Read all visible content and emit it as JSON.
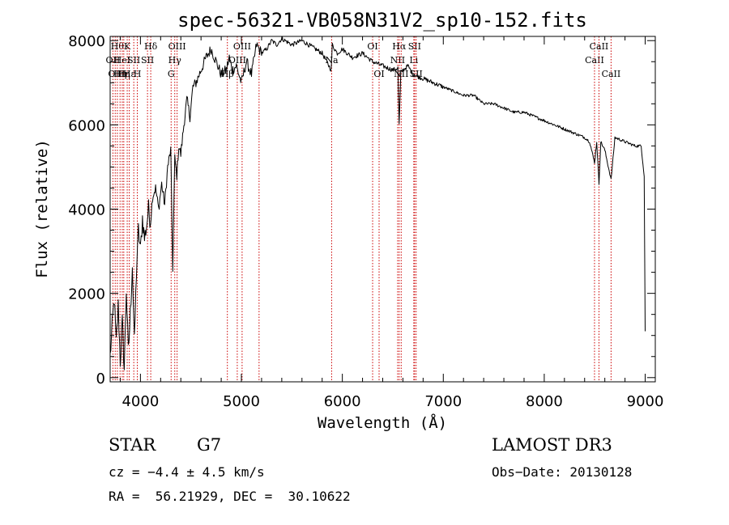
{
  "chart_data": {
    "type": "line",
    "title": "spec-56321-VB058N31V2_sp10-152.fits",
    "xlabel": "Wavelength (Å)",
    "ylabel": "Flux (relative)",
    "xlim": [
      3700,
      9100
    ],
    "ylim": [
      -100,
      8100
    ],
    "xticks": [
      4000,
      5000,
      6000,
      7000,
      8000,
      9000
    ],
    "yticks": [
      0,
      2000,
      4000,
      6000,
      8000
    ],
    "series": [
      {
        "name": "flux",
        "x": [
          3700,
          3720,
          3740,
          3760,
          3780,
          3800,
          3820,
          3840,
          3860,
          3880,
          3900,
          3920,
          3940,
          3960,
          3980,
          4000,
          4020,
          4040,
          4060,
          4080,
          4100,
          4120,
          4150,
          4180,
          4210,
          4240,
          4270,
          4300,
          4320,
          4340,
          4360,
          4380,
          4400,
          4430,
          4460,
          4490,
          4520,
          4550,
          4600,
          4650,
          4700,
          4750,
          4800,
          4850,
          4880,
          4910,
          4950,
          5000,
          5050,
          5100,
          5150,
          5200,
          5250,
          5300,
          5350,
          5400,
          5500,
          5600,
          5700,
          5800,
          5890,
          5900,
          5950,
          6000,
          6100,
          6200,
          6300,
          6400,
          6500,
          6550,
          6563,
          6580,
          6600,
          6650,
          6700,
          6800,
          6900,
          7000,
          7100,
          7200,
          7300,
          7400,
          7500,
          7600,
          7700,
          7800,
          7900,
          8000,
          8100,
          8200,
          8300,
          8400,
          8450,
          8498,
          8520,
          8542,
          8560,
          8600,
          8662,
          8700,
          8800,
          8900,
          8960,
          8990,
          9000
        ],
        "values": [
          500,
          1200,
          1900,
          800,
          1700,
          400,
          1300,
          200,
          2100,
          600,
          1500,
          2700,
          800,
          2500,
          3500,
          3000,
          3800,
          3300,
          3600,
          4000,
          3700,
          4300,
          4500,
          4000,
          4600,
          4100,
          5000,
          5400,
          2600,
          5200,
          4800,
          5500,
          5300,
          6000,
          6600,
          6200,
          6900,
          7000,
          7300,
          7600,
          7800,
          7500,
          7200,
          7300,
          7600,
          7300,
          7400,
          7000,
          7500,
          7200,
          7900,
          7700,
          7800,
          8000,
          7900,
          8050,
          7900,
          8000,
          7850,
          7700,
          7300,
          7900,
          7700,
          7800,
          7600,
          7700,
          7500,
          7400,
          7300,
          7350,
          6000,
          7250,
          7300,
          7400,
          7200,
          7100,
          7000,
          6900,
          6800,
          6700,
          6700,
          6500,
          6500,
          6400,
          6300,
          6300,
          6200,
          6100,
          6000,
          5900,
          5800,
          5700,
          5600,
          5100,
          5600,
          4600,
          5600,
          5400,
          4700,
          5700,
          5600,
          5500,
          5500,
          4800,
          1100
        ]
      }
    ],
    "lines": [
      {
        "wave": 3727,
        "label": "OII",
        "row": 2
      },
      {
        "wave": 3750,
        "label": "OII",
        "row": 3
      },
      {
        "wave": 3771,
        "label": "Hθ",
        "row": 1
      },
      {
        "wave": 3798,
        "label": "Hη",
        "row": 3
      },
      {
        "wave": 3820,
        "label": "HeI",
        "row": 2
      },
      {
        "wave": 3835,
        "label": "Hη",
        "row": 3
      },
      {
        "wave": 3869,
        "label": "K",
        "row": 1
      },
      {
        "wave": 3889,
        "label": "Hε",
        "row": 3
      },
      {
        "wave": 3934,
        "label": "SII",
        "row": 2
      },
      {
        "wave": 3969,
        "label": "H",
        "row": 3
      },
      {
        "wave": 4070,
        "label": "SII",
        "row": 2
      },
      {
        "wave": 4102,
        "label": "Hδ",
        "row": 1
      },
      {
        "wave": 4304,
        "label": "G",
        "row": 3
      },
      {
        "wave": 4340,
        "label": "Hγ",
        "row": 2
      },
      {
        "wave": 4363,
        "label": "OIII",
        "row": 1
      },
      {
        "wave": 4861,
        "label": "Hβ",
        "row": 3
      },
      {
        "wave": 4959,
        "label": "OIII",
        "row": 2
      },
      {
        "wave": 5007,
        "label": "OIII",
        "row": 1
      },
      {
        "wave": 5175,
        "label": "",
        "row": 0
      },
      {
        "wave": 5894,
        "label": "Na",
        "row": 2
      },
      {
        "wave": 6300,
        "label": "OI",
        "row": 1
      },
      {
        "wave": 6364,
        "label": "OI",
        "row": 3
      },
      {
        "wave": 6548,
        "label": "NII",
        "row": 2
      },
      {
        "wave": 6563,
        "label": "Hα",
        "row": 1
      },
      {
        "wave": 6583,
        "label": "NII",
        "row": 3
      },
      {
        "wave": 6708,
        "label": "Li",
        "row": 2
      },
      {
        "wave": 6716,
        "label": "SII",
        "row": 1
      },
      {
        "wave": 6731,
        "label": "SII",
        "row": 3
      },
      {
        "wave": 8498,
        "label": "CaII",
        "row": 2
      },
      {
        "wave": 8542,
        "label": "CaII",
        "row": 1
      },
      {
        "wave": 8662,
        "label": "CaII",
        "row": 3
      }
    ]
  },
  "info": {
    "class_label": "STAR",
    "subclass": "G7",
    "survey": "LAMOST DR3",
    "cz": "cz = −4.4 ± 4.5 km/s",
    "obs_date": "Obs−Date: 20130128",
    "coords": "RA =  56.21929, DEC =  30.10622"
  },
  "colors": {
    "line_marker": "#cc0000",
    "spectrum": "#000000"
  }
}
